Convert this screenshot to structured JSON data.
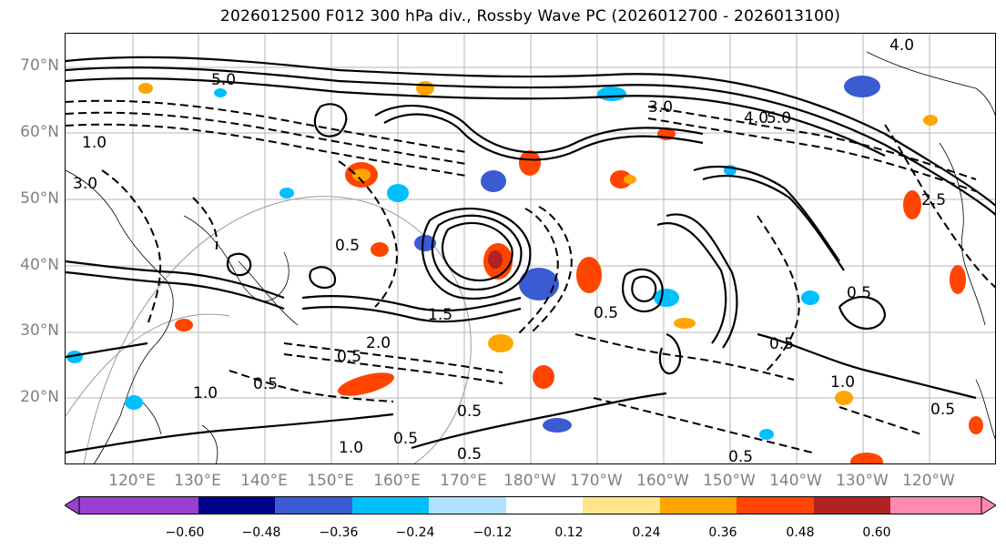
{
  "title": "2026012500 F012 300 hPa div., Rossby Wave PC (2026012700 - 2026013100)",
  "latitude_labels": [
    "70°N",
    "60°N",
    "50°N",
    "40°N",
    "30°N",
    "20°N"
  ],
  "longitude_labels": [
    "120°E",
    "130°E",
    "140°E",
    "150°E",
    "160°E",
    "170°E",
    "180°W",
    "170°W",
    "160°W",
    "150°W",
    "140°W",
    "130°W",
    "120°W"
  ],
  "colorbar": {
    "ticks": [
      "−0.60",
      "−0.48",
      "−0.36",
      "−0.24",
      "−0.12",
      "0.12",
      "0.24",
      "0.36",
      "0.48",
      "0.60"
    ],
    "colors": [
      "#9b3fd3",
      "#00008b",
      "#3a5bd1",
      "#00bfff",
      "#b0e2ff",
      "#ffffff",
      "#ffe68a",
      "#ffa500",
      "#ff4500",
      "#b22222",
      "#ff89b3"
    ]
  },
  "contour_labels": [
    "0.5",
    "1.0",
    "1.5",
    "2.0",
    "2.5",
    "3.0",
    "4.0",
    "5.0"
  ]
}
